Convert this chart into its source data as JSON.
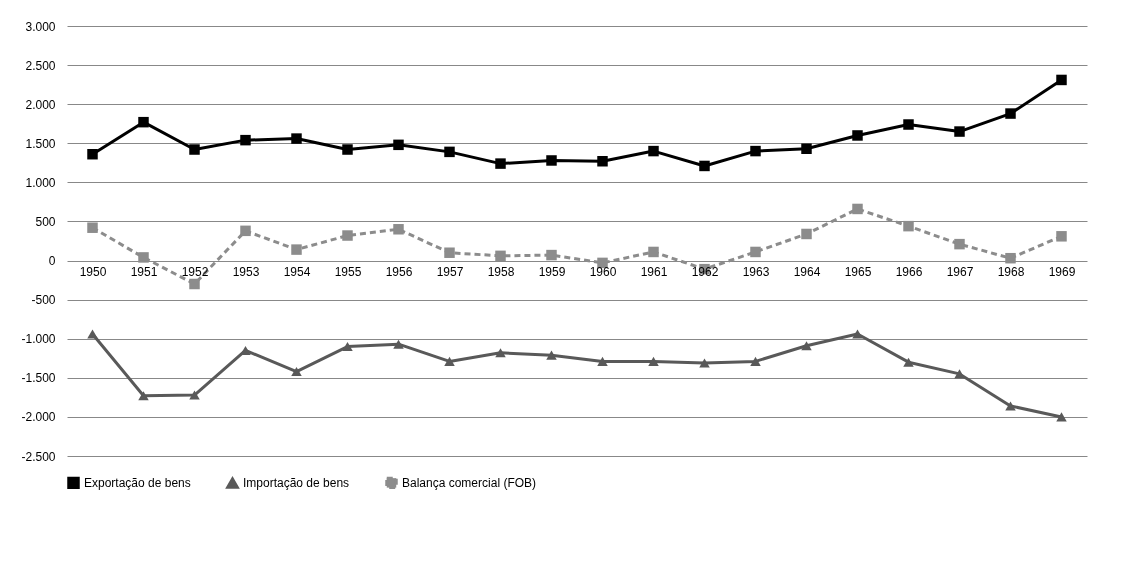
{
  "chart_data": {
    "type": "line",
    "categories": [
      "1950",
      "1951",
      "1952",
      "1953",
      "1954",
      "1955",
      "1956",
      "1957",
      "1958",
      "1959",
      "1960",
      "1961",
      "1962",
      "1963",
      "1964",
      "1965",
      "1966",
      "1967",
      "1968",
      "1969"
    ],
    "series": [
      {
        "name": "Exportação de bens",
        "color": "#000000",
        "marker": "square",
        "line_style": "solid",
        "values": [
          1360,
          1770,
          1420,
          1540,
          1560,
          1420,
          1480,
          1390,
          1240,
          1280,
          1270,
          1400,
          1210,
          1400,
          1430,
          1600,
          1740,
          1650,
          1880,
          2310
        ]
      },
      {
        "name": "Importação de bens",
        "color": "#595959",
        "marker": "triangle",
        "line_style": "solid",
        "values": [
          -940,
          -1730,
          -1720,
          -1150,
          -1420,
          -1100,
          -1070,
          -1290,
          -1180,
          -1210,
          -1290,
          -1290,
          -1310,
          -1290,
          -1090,
          -940,
          -1300,
          -1450,
          -1860,
          -2000
        ]
      },
      {
        "name": "Balança comercial (FOB)",
        "color": "#8c8c8c",
        "marker": "square",
        "line_style": "dashed",
        "values": [
          420,
          40,
          -300,
          380,
          140,
          320,
          400,
          100,
          60,
          70,
          -30,
          110,
          -110,
          110,
          340,
          660,
          440,
          210,
          30,
          310
        ]
      }
    ],
    "ylim": [
      -2500,
      3000
    ],
    "yticks": [
      {
        "value": -2500,
        "label": "-2.500"
      },
      {
        "value": -2000,
        "label": "-2.000"
      },
      {
        "value": -1500,
        "label": "-1.500"
      },
      {
        "value": -1000,
        "label": "-1.000"
      },
      -500,
      0,
      500,
      {
        "value": 1000,
        "label": "1.000"
      },
      {
        "value": 1500,
        "label": "1.500"
      },
      {
        "value": 2000,
        "label": "2.000"
      },
      {
        "value": 2500,
        "label": "2.500"
      },
      {
        "value": 3000,
        "label": "3.000"
      }
    ],
    "grid": "y",
    "legend": "bottom"
  }
}
